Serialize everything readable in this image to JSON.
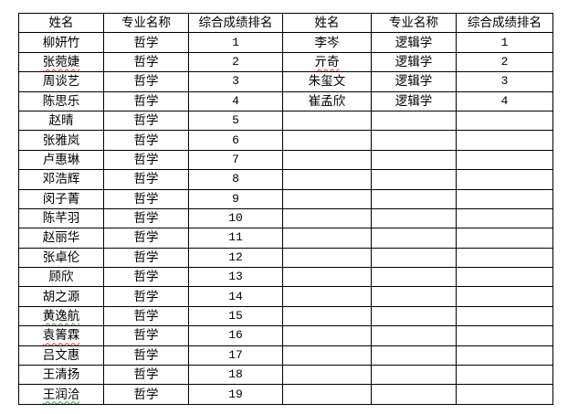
{
  "headers": [
    "姓名",
    "专业名称",
    "综合成绩排名",
    "姓名",
    "专业名称",
    "综合成绩排名"
  ],
  "left_rows": [
    {
      "name": "柳妍竹",
      "major": "哲学",
      "rank": "1"
    },
    {
      "name": "张菀婕",
      "major": "哲学",
      "rank": "2",
      "mark": "red"
    },
    {
      "name": "周谈艺",
      "major": "哲学",
      "rank": "3"
    },
    {
      "name": "陈思乐",
      "major": "哲学",
      "rank": "4"
    },
    {
      "name": "赵晴",
      "major": "哲学",
      "rank": "5"
    },
    {
      "name": "张雅岚",
      "major": "哲学",
      "rank": "6"
    },
    {
      "name": "卢惠琳",
      "major": "哲学",
      "rank": "7"
    },
    {
      "name": "邓浩辉",
      "major": "哲学",
      "rank": "8"
    },
    {
      "name": "闵子菁",
      "major": "哲学",
      "rank": "9"
    },
    {
      "name": "陈芊羽",
      "major": "哲学",
      "rank": "10"
    },
    {
      "name": "赵丽华",
      "major": "哲学",
      "rank": "11"
    },
    {
      "name": "张卓伦",
      "major": "哲学",
      "rank": "12"
    },
    {
      "name": "顾欣",
      "major": "哲学",
      "rank": "13"
    },
    {
      "name": "胡之源",
      "major": "哲学",
      "rank": "14"
    },
    {
      "name": "黄逸航",
      "major": "哲学",
      "rank": "15",
      "mark": "green"
    },
    {
      "name": "袁箐霖",
      "major": "哲学",
      "rank": "16",
      "mark": "red"
    },
    {
      "name": "吕文惠",
      "major": "哲学",
      "rank": "17"
    },
    {
      "name": "王清扬",
      "major": "哲学",
      "rank": "18"
    },
    {
      "name": "王润洽",
      "major": "哲学",
      "rank": "19",
      "mark": "green"
    }
  ],
  "right_rows": [
    {
      "name": "李岑",
      "major": "逻辑学",
      "rank": "1"
    },
    {
      "name": "亓奇",
      "major": "逻辑学",
      "rank": "2",
      "mark": "red"
    },
    {
      "name": "朱玺文",
      "major": "逻辑学",
      "rank": "3"
    },
    {
      "name": "崔孟欣",
      "major": "逻辑学",
      "rank": "4"
    }
  ]
}
